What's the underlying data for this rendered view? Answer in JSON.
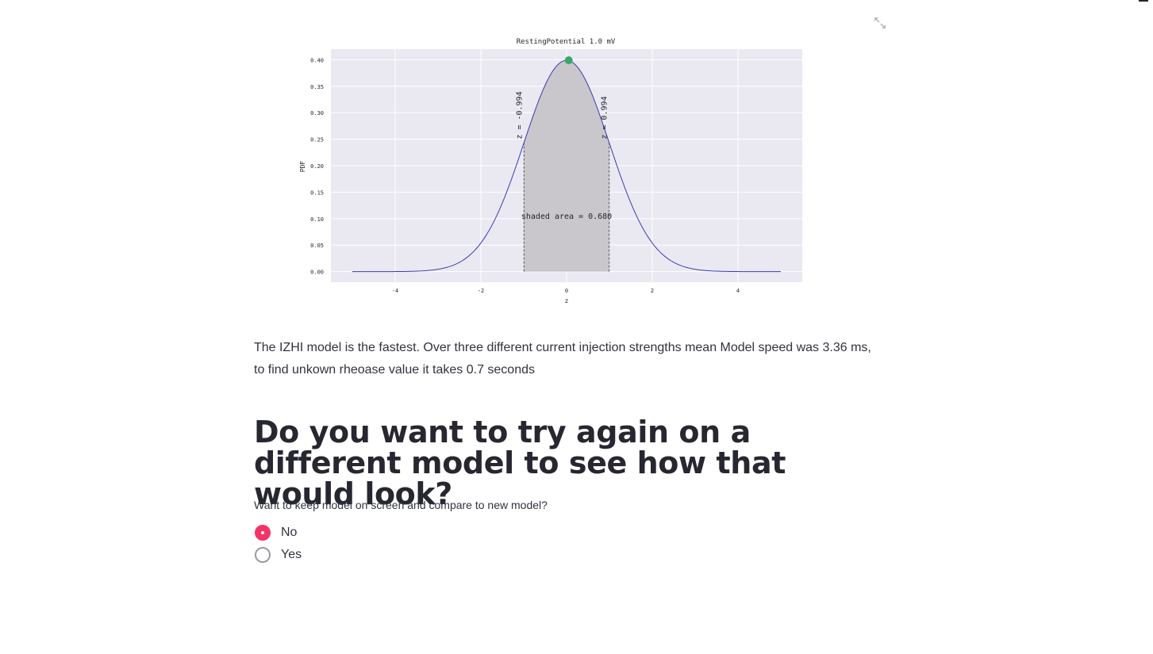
{
  "toolbar": {
    "expand_icon": "fullscreen-expand-icon"
  },
  "chart_data": {
    "type": "line",
    "title": "RestingPotential 1.0 mV",
    "xlabel": "z",
    "ylabel": "PDF",
    "xlim": [
      -5.5,
      5.5
    ],
    "ylim": [
      -0.02,
      0.42
    ],
    "x_ticks": [
      -4,
      -2,
      0,
      2,
      4
    ],
    "x_tick_labels": [
      "-4",
      "-2",
      "0",
      "2",
      "4"
    ],
    "y_ticks": [
      0.0,
      0.05,
      0.1,
      0.15,
      0.2,
      0.25,
      0.3,
      0.35,
      0.4
    ],
    "y_tick_labels": [
      "0.00",
      "0.05",
      "0.10",
      "0.15",
      "0.20",
      "0.25",
      "0.30",
      "0.35",
      "0.40"
    ],
    "grid": true,
    "series": [
      {
        "distribution": "standard normal pdf",
        "x_range": [
          -5,
          5
        ],
        "mean": 0,
        "std": 1,
        "color": "#3b3bb3"
      }
    ],
    "shaded_region": {
      "x_from": -0.994,
      "x_to": 0.994,
      "color": "#c9c7cc"
    },
    "marker": {
      "x": 0.05,
      "y": 0.399,
      "color": "#3aa86b"
    },
    "annotations": [
      {
        "text": "z = -0.994",
        "x": -0.994,
        "y": 0.25,
        "rotation": -90
      },
      {
        "text": "z = 0.994",
        "x": 0.994,
        "y": 0.25,
        "rotation": -90
      },
      {
        "text": "shaded area = 0.680",
        "x": 0,
        "y": 0.1
      }
    ],
    "colors": {
      "background": "#eae9f2",
      "grid": "#ffffff"
    }
  },
  "main": {
    "paragraph": "The IZHI model is the fastest. Over three different current injection strengths mean Model speed was 3.36 ms, to find unkown rheoase value it takes 0.7 seconds",
    "heading": "Do you want to try again on a different model to see how that would look?",
    "radio": {
      "label": "Want to keep model on screen and compare to new model?",
      "options": [
        {
          "label": "No",
          "checked": true
        },
        {
          "label": "Yes",
          "checked": false
        }
      ]
    }
  },
  "colors": {
    "accent": "#f63366"
  }
}
